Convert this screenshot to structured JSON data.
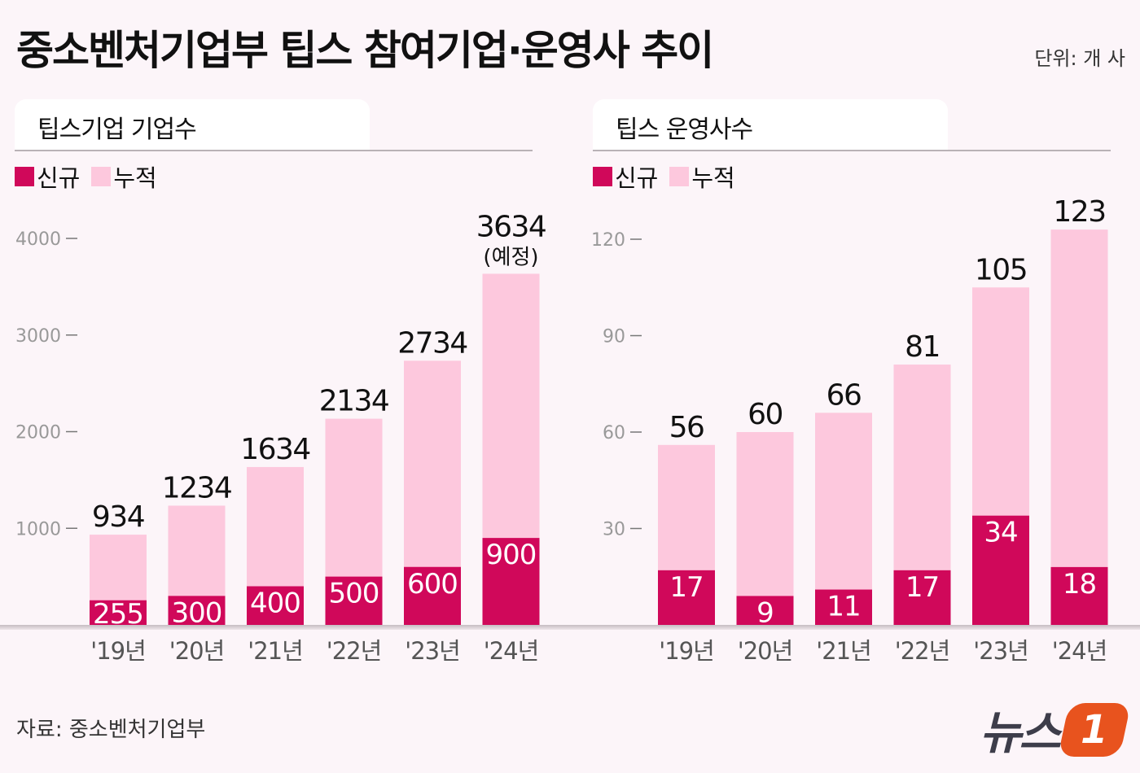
{
  "title": "중소벤처기업부 팁스 참여기업·운영사 추이",
  "unit": "단위: 개 사",
  "source": "자료: 중소벤처기업부",
  "logo": {
    "text": "뉴스",
    "mark": "1"
  },
  "colors": {
    "new": "#d0085a",
    "cumulative": "#fdc8dd",
    "background": "#fcf5f9",
    "logo_accent": "#e8531e"
  },
  "legend": {
    "new": "신규",
    "cumulative": "누적"
  },
  "chart_data": [
    {
      "type": "bar",
      "title": "팁스기업 기업수",
      "categories": [
        "'19년",
        "'20년",
        "'21년",
        "'22년",
        "'23년",
        "'24년"
      ],
      "series": [
        {
          "name": "신규",
          "values": [
            255,
            300,
            400,
            500,
            600,
            900
          ]
        },
        {
          "name": "누적",
          "values": [
            934,
            1234,
            1634,
            2134,
            2734,
            3634
          ]
        }
      ],
      "annotations": [
        {
          "category": "'24년",
          "text": "(예정)"
        }
      ],
      "ylim": [
        0,
        4000
      ],
      "yticks": [
        1000,
        2000,
        3000,
        4000
      ],
      "grid": false,
      "legend_position": "top-left"
    },
    {
      "type": "bar",
      "title": "팁스 운영사수",
      "categories": [
        "'19년",
        "'20년",
        "'21년",
        "'22년",
        "'23년",
        "'24년"
      ],
      "series": [
        {
          "name": "신규",
          "values": [
            17,
            9,
            11,
            17,
            34,
            18
          ]
        },
        {
          "name": "누적",
          "values": [
            56,
            60,
            66,
            81,
            105,
            123
          ]
        }
      ],
      "ylim": [
        0,
        120
      ],
      "yticks": [
        30,
        60,
        90,
        120
      ],
      "grid": false,
      "legend_position": "top-left"
    }
  ]
}
